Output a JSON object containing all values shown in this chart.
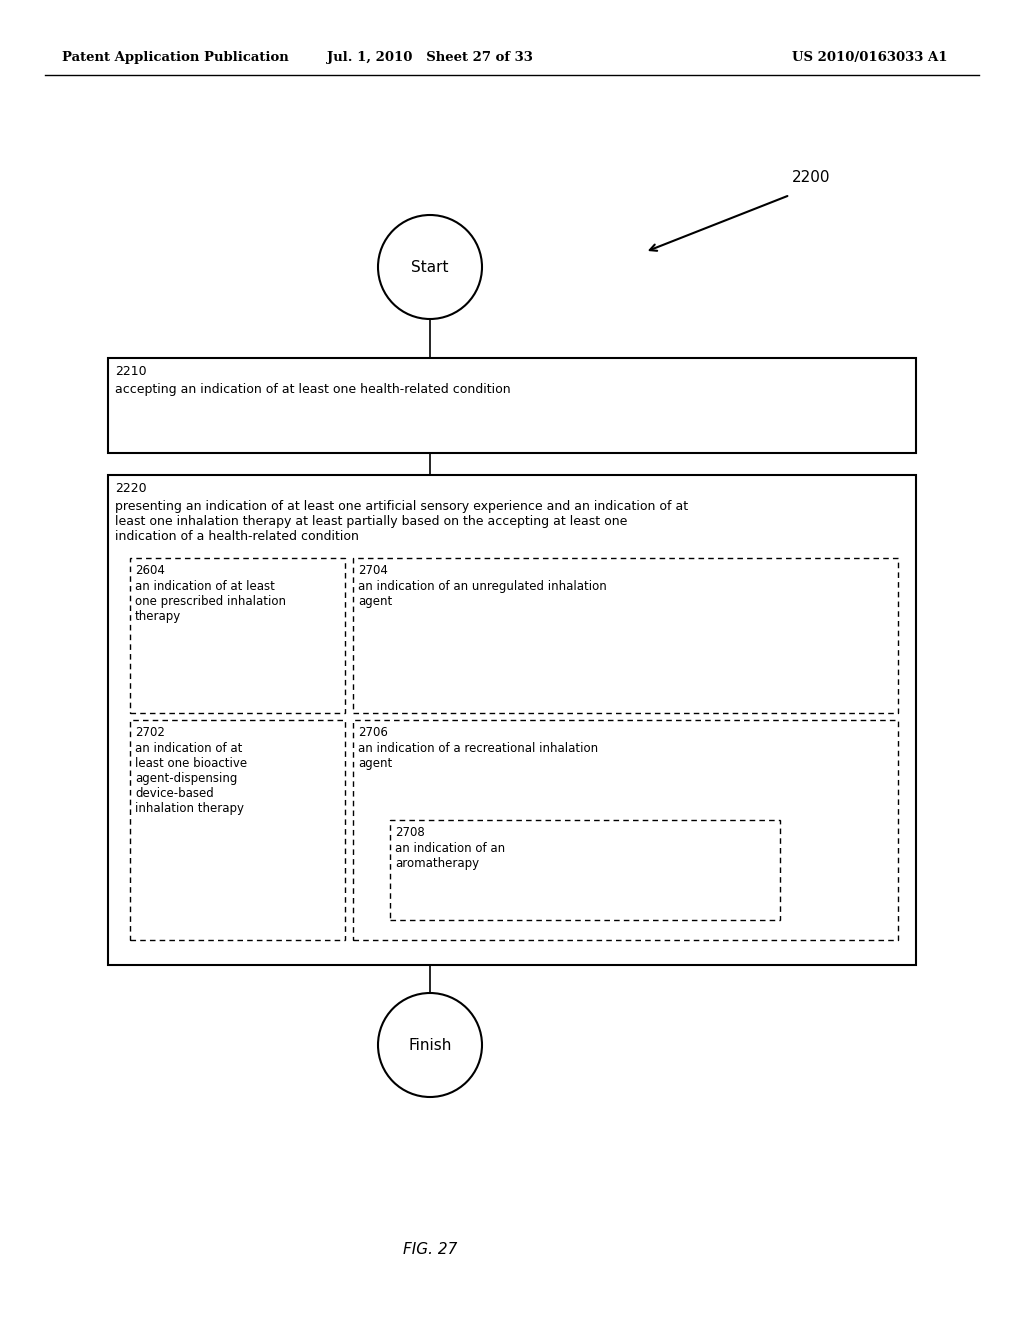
{
  "header_left": "Patent Application Publication",
  "header_center": "Jul. 1, 2010   Sheet 27 of 33",
  "header_right": "US 2010/0163033 A1",
  "fig_label": "FIG. 27",
  "diagram_label": "2200",
  "start_label": "Start",
  "finish_label": "Finish",
  "box2210_label": "2210",
  "box2210_text": "accepting an indication of at least one health-related condition",
  "box2220_label": "2220",
  "box2220_text": "presenting an indication of at least one artificial sensory experience and an indication of at\nleast one inhalation therapy at least partially based on the accepting at least one\nindication of a health-related condition",
  "box2604_label": "2604",
  "box2604_text": "an indication of at least\none prescribed inhalation\ntherapy",
  "box2704_label": "2704",
  "box2704_text": "an indication of an unregulated inhalation\nagent",
  "box2702_label": "2702",
  "box2702_text": "an indication of at\nleast one bioactive\nagent-dispensing\ndevice-based\ninhalation therapy",
  "box2706_label": "2706",
  "box2706_text": "an indication of a recreational inhalation\nagent",
  "box2708_label": "2708",
  "box2708_text": "an indication of an\naromatherapy",
  "bg_color": "#ffffff",
  "text_color": "#000000",
  "line_color": "#000000"
}
